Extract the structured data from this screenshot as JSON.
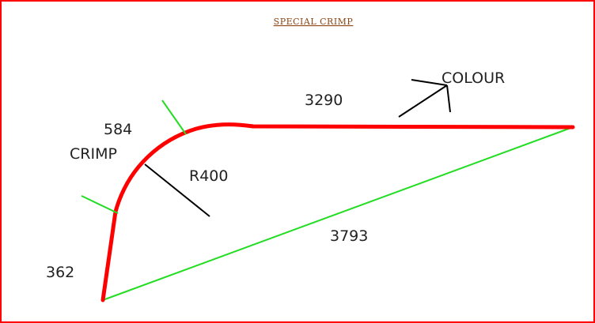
{
  "title": "SPECIAL  CRIMP",
  "labels": {
    "colour": "COLOUR",
    "top_length": "3290",
    "crimp_length": "584",
    "crimp": "CRIMP",
    "radius": "R400",
    "diagonal": "3793",
    "bottom_length": "362"
  },
  "colors": {
    "border": "#ff0000",
    "profile": "#ff0000",
    "diagonal": "#22dd22",
    "crimp_ticks": "#22dd22",
    "leaders": "#000000",
    "title": "#8b4513",
    "text": "#222222"
  },
  "icons": {
    "colour_side_arrow": "arrow-icon"
  }
}
